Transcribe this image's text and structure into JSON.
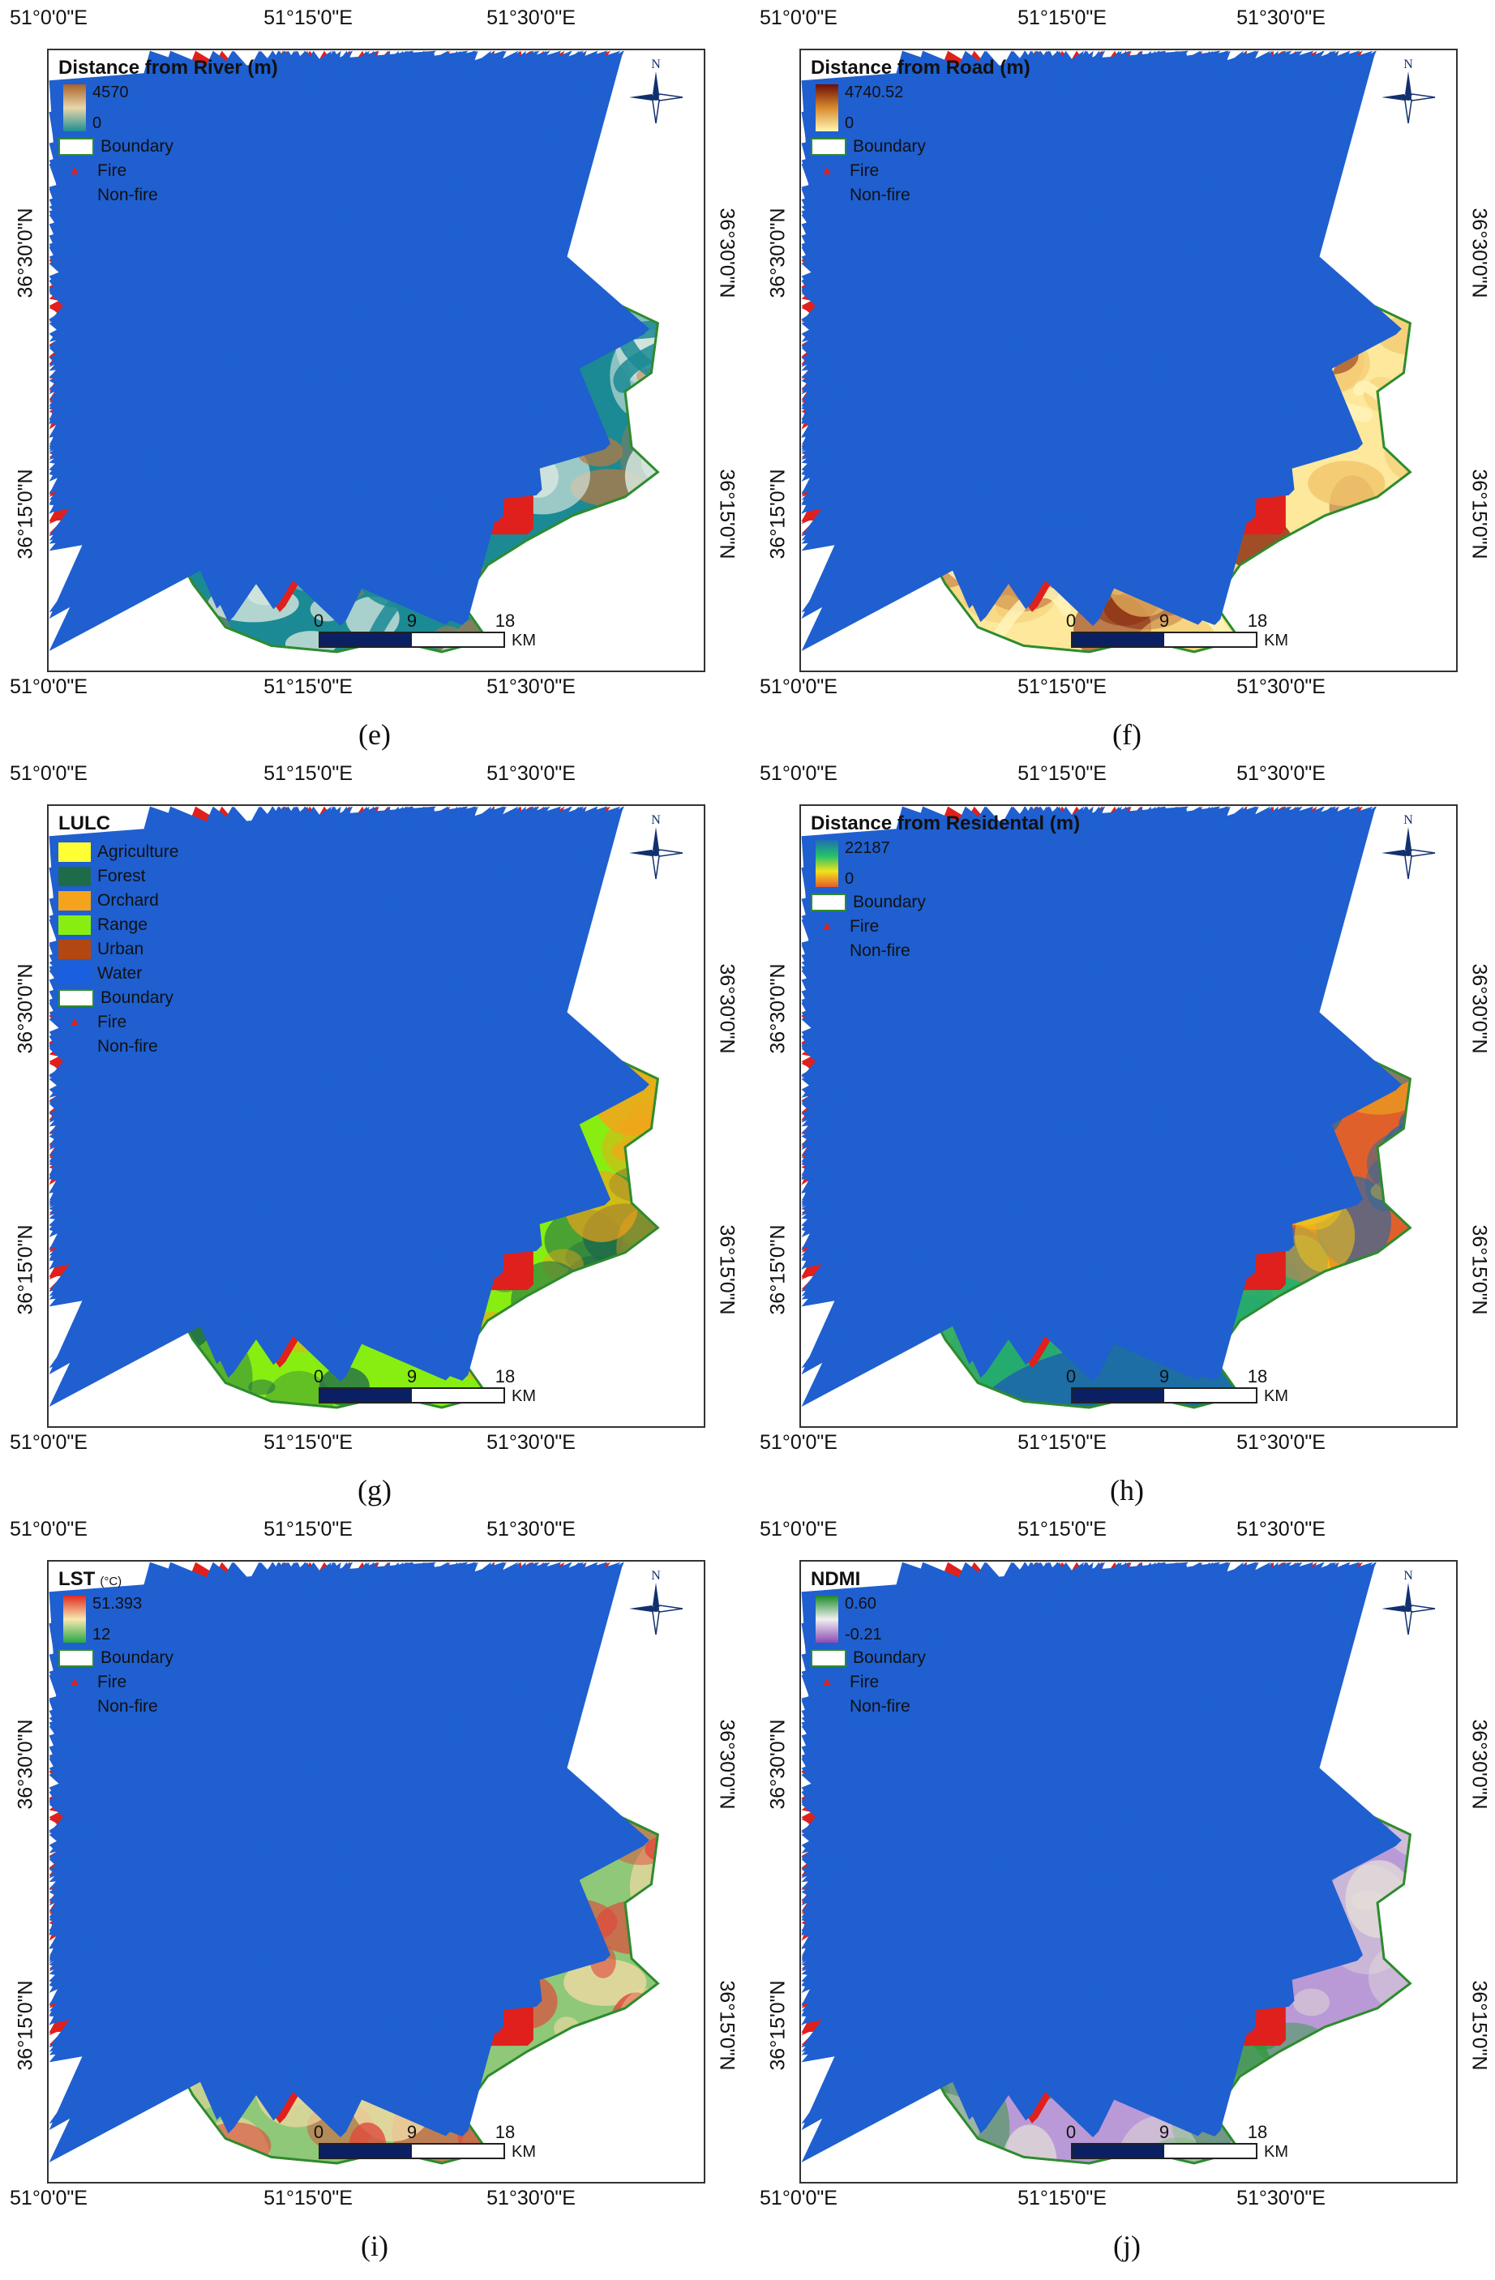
{
  "figure": {
    "coordinates": {
      "lon_ticks": [
        "51°0'0\"E",
        "51°15'0\"E",
        "51°30'0\"E"
      ],
      "lat_ticks": [
        "36°30'0\"N",
        "36°15'0\"N"
      ]
    },
    "scale_bar": {
      "ticks": [
        "0",
        "9",
        "18"
      ],
      "unit": "KM"
    },
    "compass_label": "N",
    "common_legend": {
      "boundary": "Boundary",
      "fire": "Fire",
      "nonfire": "Non-fire"
    },
    "colors": {
      "boundary": "#2e8b2e",
      "fire": "#e0201c",
      "nonfire": "#1f5fd0",
      "scale_dark": "#0b1f63"
    },
    "panels": [
      {
        "id": "e",
        "caption": "(e)",
        "title": "Distance from River (m)",
        "title_unit": "",
        "legend_type": "gradient",
        "max": "4570",
        "min": "0",
        "ramp_colors": [
          "#a8622a",
          "#e8d6a9",
          "#1e8f94"
        ],
        "map_colors": {
          "base": "#1b8a94",
          "mid": "#d8e7df",
          "high": "#b77a43"
        },
        "fire_points": 38,
        "nonfire_points": 82
      },
      {
        "id": "f",
        "caption": "(f)",
        "title": "Distance from Road (m)",
        "title_unit": "",
        "legend_type": "gradient",
        "max": "4740.52",
        "min": "0",
        "ramp_colors": [
          "#6b0d0a",
          "#d98a2c",
          "#fff7b4"
        ],
        "map_colors": {
          "base": "#fde89c",
          "mid": "#f1c46a",
          "high": "#8a2a0e"
        },
        "fire_points": 38,
        "nonfire_points": 82
      },
      {
        "id": "g",
        "caption": "(g)",
        "title": "LULC",
        "title_unit": "",
        "legend_type": "classes",
        "classes": [
          {
            "label": "Agriculture",
            "color": "#ffff33"
          },
          {
            "label": "Forest",
            "color": "#1e6b4a"
          },
          {
            "label": "Orchard",
            "color": "#f5a31a"
          },
          {
            "label": "Range",
            "color": "#88ee11"
          },
          {
            "label": "Urban",
            "color": "#b34712"
          },
          {
            "label": "Water",
            "color": "#1a5fdf"
          }
        ],
        "map_colors": {
          "base": "#88ee11",
          "mid": "#1e6b4a",
          "high": "#f5a31a"
        },
        "fire_points": 38,
        "nonfire_points": 82
      },
      {
        "id": "h",
        "caption": "(h)",
        "title": "Distance from Residental (m)",
        "title_unit": "",
        "legend_type": "gradient",
        "max": "22187",
        "min": "0",
        "ramp_colors": [
          "#1f6fb0",
          "#22c06a",
          "#f2e31b",
          "#e55b2b"
        ],
        "map_colors": {
          "base": "#e0602c",
          "mid": "#f0c11c",
          "high": "#1c6aa8"
        },
        "fire_points": 38,
        "nonfire_points": 82
      },
      {
        "id": "i",
        "caption": "(i)",
        "title": "LST",
        "title_unit": "(°C)",
        "legend_type": "gradient",
        "max": "51.393",
        "min": "12",
        "ramp_colors": [
          "#e02b20",
          "#f7e8b0",
          "#28a745"
        ],
        "map_colors": {
          "base": "#8fc878",
          "mid": "#efd9a3",
          "high": "#e0483a"
        },
        "fire_points": 38,
        "nonfire_points": 82
      },
      {
        "id": "j",
        "caption": "(j)",
        "title": "NDMI",
        "title_unit": "",
        "legend_type": "gradient",
        "max": "0.60",
        "min": "-0.21",
        "ramp_colors": [
          "#1c8a2a",
          "#f0f0f0",
          "#8a4bb5"
        ],
        "map_colors": {
          "base": "#b99ad6",
          "mid": "#e6e2d8",
          "high": "#2f9a3c"
        },
        "fire_points": 38,
        "nonfire_points": 82
      }
    ]
  }
}
